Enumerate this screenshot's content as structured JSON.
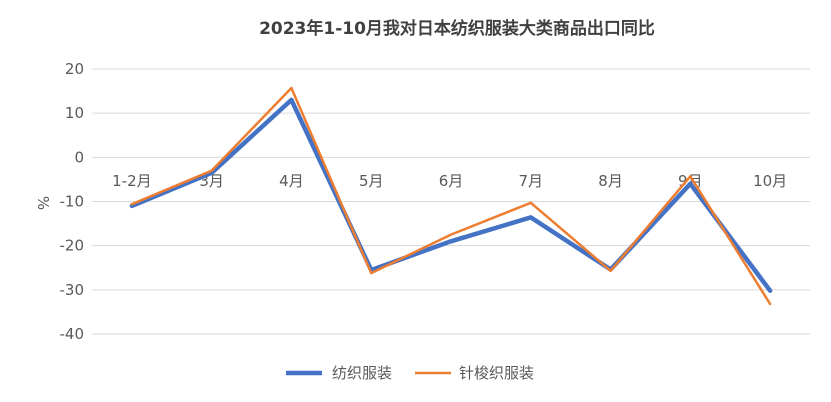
{
  "chart_data": {
    "type": "line",
    "title": "2023年1-10月我对日本纺织服装大类商品出口同比",
    "xlabel": "",
    "ylabel": "%",
    "categories": [
      "1-2月",
      "3月",
      "4月",
      "5月",
      "6月",
      "7月",
      "8月",
      "9月",
      "10月"
    ],
    "ylim": [
      -40,
      20
    ],
    "yticks": [
      20,
      10,
      0,
      -10,
      -20,
      -30,
      -40
    ],
    "grid": true,
    "legend_position": "bottom",
    "series": [
      {
        "name": "纺织服装",
        "color": "#4472C4",
        "values": [
          -11,
          -3.5,
          13,
          -25.5,
          -19,
          -13.6,
          -25.4,
          -6,
          -30.2
        ]
      },
      {
        "name": "针梭织服装",
        "color": "#ED7D31",
        "values": [
          -10.6,
          -3,
          15.7,
          -26.2,
          -17.5,
          -10.3,
          -25.7,
          -4.3,
          -33.2
        ]
      }
    ]
  }
}
